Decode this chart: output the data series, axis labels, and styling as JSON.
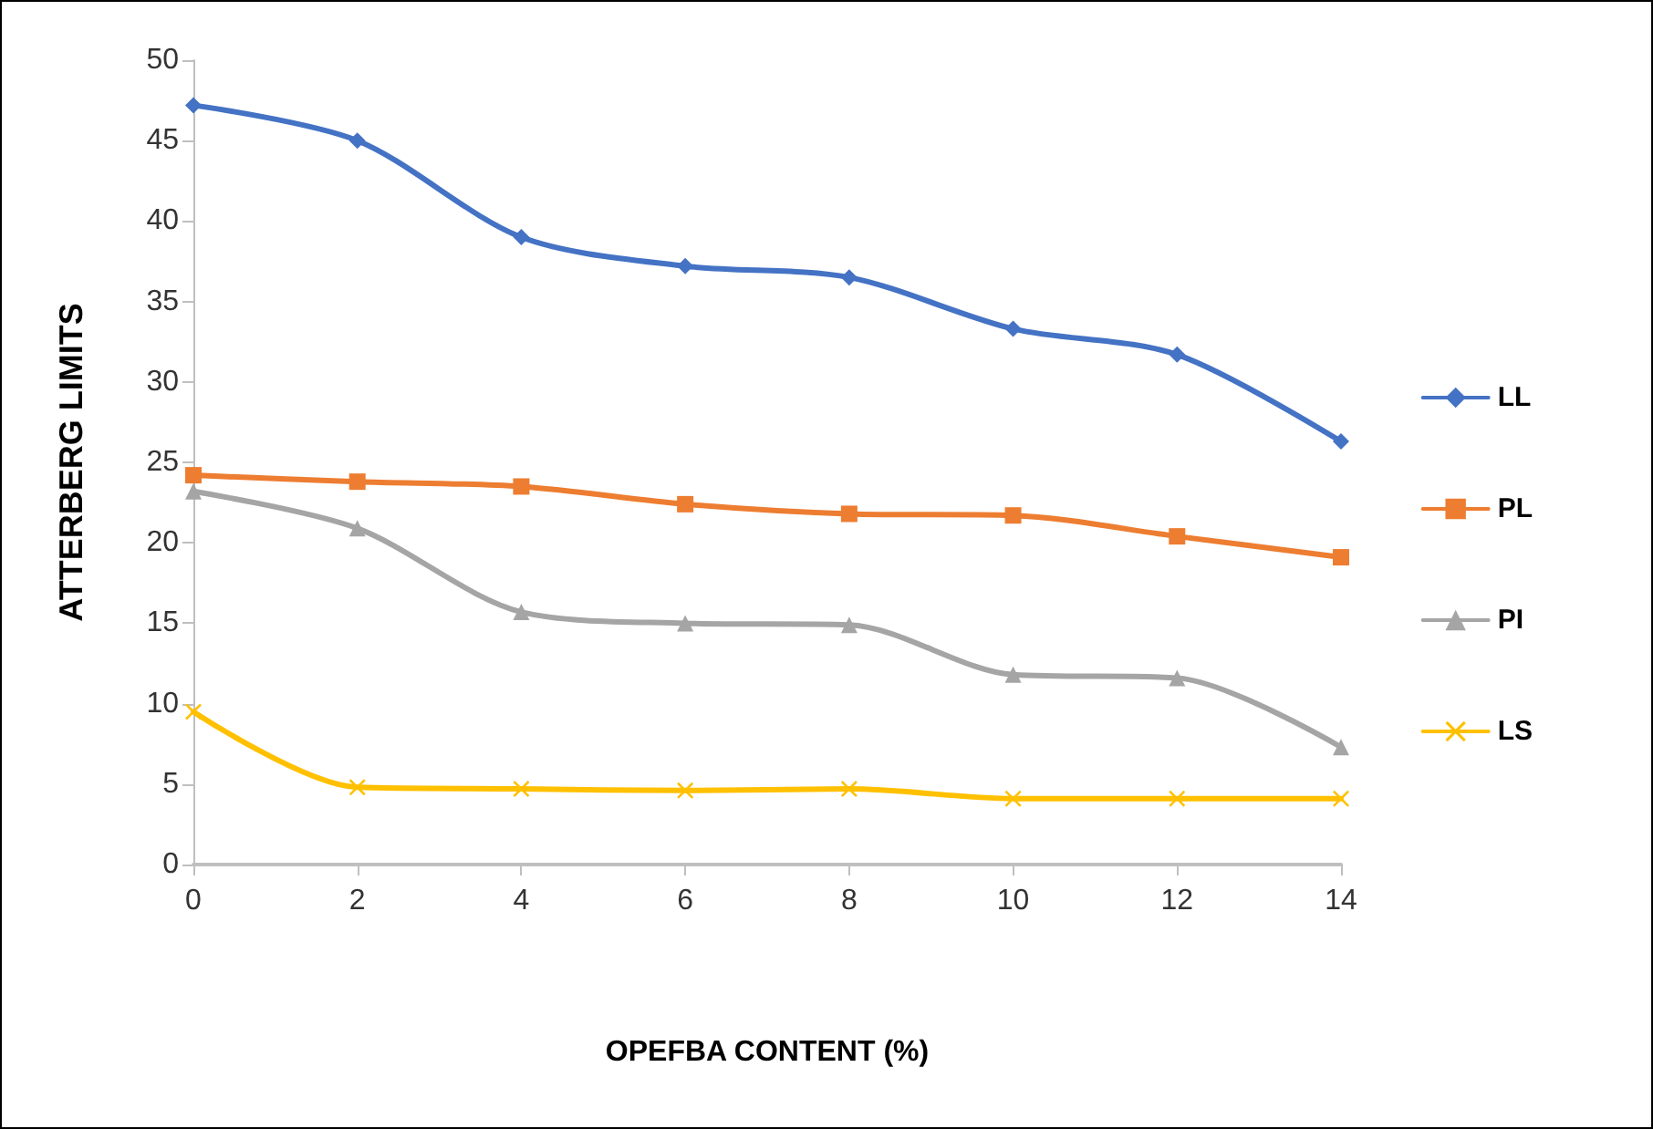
{
  "chart_data": {
    "type": "line",
    "xlabel": "OPEFBA CONTENT (%)",
    "ylabel": "ATTERBERG LIMITS",
    "x": [
      0,
      2,
      4,
      6,
      8,
      10,
      12,
      14
    ],
    "xlim": [
      0,
      14
    ],
    "xticks": [
      0,
      2,
      4,
      6,
      8,
      10,
      12,
      14
    ],
    "ylim": [
      0,
      50
    ],
    "yticks": [
      0,
      5,
      10,
      15,
      20,
      25,
      30,
      35,
      40,
      45,
      50
    ],
    "grid": false,
    "legend": "right",
    "line_style": "solid",
    "series": [
      {
        "name": "LL",
        "color": "#4472c4",
        "marker": "diamond",
        "values": [
          47.2,
          45.0,
          39.0,
          37.2,
          36.5,
          33.3,
          31.7,
          26.3
        ]
      },
      {
        "name": "PL",
        "color": "#ed7d31",
        "marker": "square",
        "values": [
          24.2,
          23.8,
          23.5,
          22.4,
          21.8,
          21.7,
          20.4,
          19.1
        ]
      },
      {
        "name": "PI",
        "color": "#a5a5a5",
        "marker": "triangle",
        "values": [
          23.2,
          20.9,
          15.7,
          15.0,
          14.9,
          11.8,
          11.6,
          7.3
        ]
      },
      {
        "name": "LS",
        "color": "#ffc000",
        "marker": "cross",
        "values": [
          9.5,
          4.8,
          4.7,
          4.6,
          4.7,
          4.1,
          4.1,
          4.1
        ]
      }
    ]
  }
}
